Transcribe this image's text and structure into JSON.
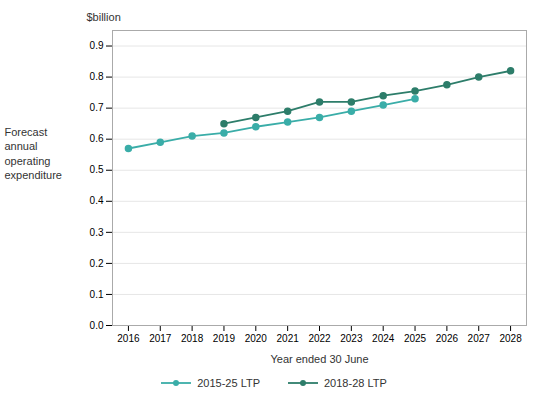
{
  "chart_data": {
    "type": "line",
    "xlabel": "Year ended 30 June",
    "ylabel": "Forecast\nannual\noperating\nexpenditure",
    "annotations": [
      "$billion"
    ],
    "series": [
      {
        "name": "2015-25 LTP",
        "color": "#3aada8",
        "x": [
          2016,
          2017,
          2018,
          2019,
          2020,
          2021,
          2022,
          2023,
          2024,
          2025
        ],
        "values": [
          0.57,
          0.59,
          0.61,
          0.62,
          0.64,
          0.655,
          0.67,
          0.69,
          0.71,
          0.73
        ]
      },
      {
        "name": "2018-28 LTP",
        "color": "#2d7d6a",
        "x": [
          2019,
          2020,
          2021,
          2022,
          2023,
          2024,
          2025,
          2026,
          2027,
          2028
        ],
        "values": [
          0.65,
          0.67,
          0.69,
          0.72,
          0.72,
          0.74,
          0.755,
          0.775,
          0.8,
          0.82
        ]
      }
    ],
    "xlim": [
      2015.5,
      2028.5
    ],
    "xticks": [
      2016,
      2017,
      2018,
      2019,
      2020,
      2021,
      2022,
      2023,
      2024,
      2025,
      2026,
      2027,
      2028
    ],
    "ylim": [
      0.0,
      0.95
    ],
    "yticks": [
      {
        "value": 0,
        "label": "0.0"
      },
      0.1,
      0.2,
      0.3,
      0.4,
      0.5,
      0.6,
      0.7,
      0.8,
      0.9
    ],
    "grid": true,
    "legend": "bottom",
    "marker": "circle"
  }
}
